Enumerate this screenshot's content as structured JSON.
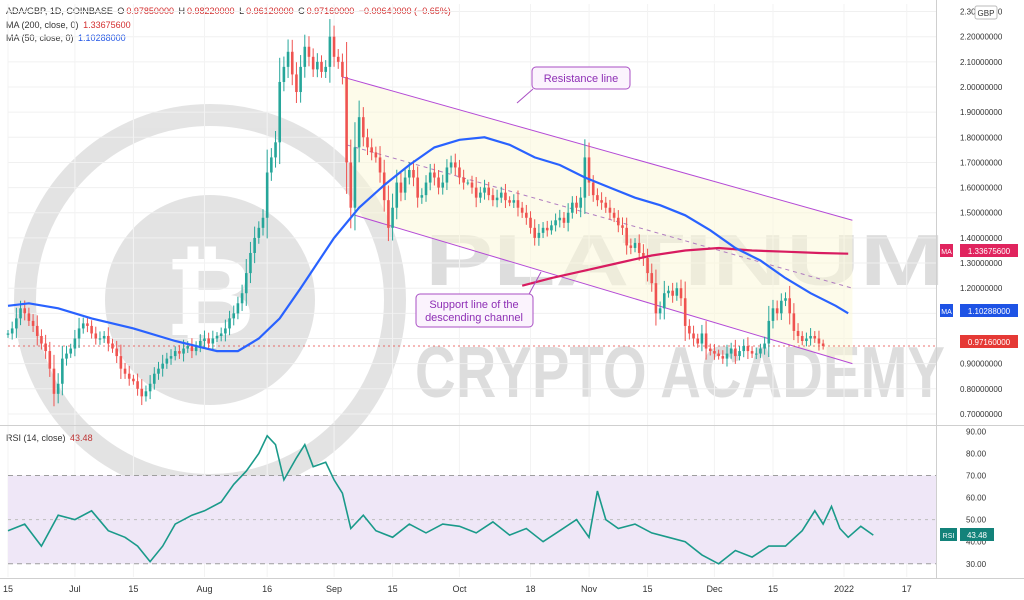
{
  "legend": {
    "symbol": "ADA/GBP, 1D, COINBASE",
    "o_label": "O",
    "o_value": "0.97850000",
    "h_label": "H",
    "h_value": "0.98220000",
    "l_label": "L",
    "l_value": "0.96120000",
    "c_label": "C",
    "c_value": "0.97160000",
    "change": "−0.00640000 (−0.65%)",
    "ma200_label": "MA (200, close, 0)",
    "ma200_value": "1.33675600",
    "ma50_label": "MA (50, close, 0)",
    "ma50_value": "1.10288000",
    "rsi_label": "RSI (14, close)",
    "rsi_value": "43.48"
  },
  "currency": "GBP",
  "annotations": {
    "resistance": "Resistance line",
    "support_line1": "Support line of the",
    "support_line2": "descending channel"
  },
  "watermark": {
    "line1": "PLATINUM",
    "line2": "CRYPTO ACADEMY"
  },
  "badges": {
    "ma200": {
      "tag": "MA",
      "value": "1.33675600",
      "color": "#e0245e"
    },
    "ma50": {
      "tag": "MA",
      "value": "1.10288000",
      "color": "#1e53e5"
    },
    "last": {
      "value": "0.97160000",
      "color": "#e53935"
    },
    "rsi": {
      "tag": "RSI",
      "value": "43.48",
      "color": "#13827a"
    }
  },
  "colors": {
    "up": "#26a69a",
    "down": "#ef5350",
    "ma50": "#2962ff",
    "ma200": "#d81b60",
    "channel": "#b44ad6",
    "rsi": "#1a9a8a",
    "rsi_band": "#efe7f7"
  },
  "chart_data": {
    "type": "candlestick",
    "price_axis": {
      "ticks": [
        "0.70000000",
        "0.80000000",
        "0.90000000",
        "1.00000000",
        "1.10000000",
        "1.20000000",
        "1.30000000",
        "1.40000000",
        "1.50000000",
        "1.60000000",
        "1.70000000",
        "1.80000000",
        "1.90000000",
        "2.00000000",
        "2.10000000",
        "2.20000000",
        "2.30000000"
      ],
      "range": [
        0.66,
        2.33
      ]
    },
    "rsi_axis": {
      "ticks": [
        "30.00",
        "40.00",
        "50.00",
        "60.00",
        "70.00",
        "80.00",
        "90.00"
      ],
      "range": [
        24,
        92
      ],
      "band": [
        30,
        70
      ],
      "midline": 50
    },
    "x_axis": {
      "ticks": [
        {
          "label": "15",
          "t": 0
        },
        {
          "label": "Jul",
          "t": 16
        },
        {
          "label": "15",
          "t": 30
        },
        {
          "label": "Aug",
          "t": 47
        },
        {
          "label": "16",
          "t": 62
        },
        {
          "label": "Sep",
          "t": 78
        },
        {
          "label": "15",
          "t": 92
        },
        {
          "label": "Oct",
          "t": 108
        },
        {
          "label": "18",
          "t": 125
        },
        {
          "label": "Nov",
          "t": 139
        },
        {
          "label": "15",
          "t": 153
        },
        {
          "label": "Dec",
          "t": 169
        },
        {
          "label": "15",
          "t": 183
        },
        {
          "label": "2022",
          "t": 200
        },
        {
          "label": "17",
          "t": 215
        }
      ],
      "range": [
        0,
        222
      ]
    },
    "close": [
      1.02,
      1.04,
      1.08,
      1.12,
      1.1,
      1.07,
      1.05,
      1.01,
      0.98,
      0.95,
      0.88,
      0.78,
      0.82,
      0.92,
      0.94,
      0.96,
      1.0,
      1.04,
      1.06,
      1.05,
      1.02,
      1.0,
      1.0,
      1.01,
      0.98,
      0.96,
      0.93,
      0.88,
      0.86,
      0.84,
      0.83,
      0.8,
      0.77,
      0.79,
      0.82,
      0.86,
      0.88,
      0.9,
      0.92,
      0.93,
      0.95,
      0.94,
      0.96,
      0.97,
      0.95,
      0.97,
      0.99,
      1.0,
      0.98,
      1.0,
      1.01,
      1.02,
      1.04,
      1.08,
      1.1,
      1.14,
      1.18,
      1.26,
      1.34,
      1.4,
      1.44,
      1.48,
      1.66,
      1.72,
      1.78,
      2.02,
      2.08,
      2.14,
      2.05,
      1.98,
      2.08,
      2.16,
      2.12,
      2.07,
      2.1,
      2.06,
      2.08,
      2.2,
      2.12,
      2.1,
      2.04,
      1.7,
      1.52,
      1.76,
      1.88,
      1.8,
      1.76,
      1.74,
      1.72,
      1.66,
      1.55,
      1.44,
      1.52,
      1.62,
      1.58,
      1.64,
      1.67,
      1.64,
      1.56,
      1.57,
      1.62,
      1.66,
      1.64,
      1.6,
      1.62,
      1.68,
      1.7,
      1.68,
      1.64,
      1.62,
      1.62,
      1.6,
      1.56,
      1.58,
      1.6,
      1.57,
      1.55,
      1.56,
      1.58,
      1.55,
      1.54,
      1.55,
      1.52,
      1.5,
      1.48,
      1.44,
      1.4,
      1.42,
      1.44,
      1.43,
      1.45,
      1.47,
      1.48,
      1.46,
      1.5,
      1.54,
      1.52,
      1.56,
      1.72,
      1.62,
      1.57,
      1.55,
      1.54,
      1.52,
      1.5,
      1.48,
      1.45,
      1.44,
      1.37,
      1.36,
      1.38,
      1.34,
      1.32,
      1.26,
      1.22,
      1.1,
      1.12,
      1.18,
      1.19,
      1.17,
      1.2,
      1.16,
      1.05,
      1.02,
      1.0,
      0.98,
      1.02,
      0.96,
      0.95,
      0.94,
      0.93,
      0.92,
      0.94,
      0.96,
      0.93,
      0.95,
      0.97,
      0.95,
      0.94,
      0.94,
      0.96,
      0.98,
      1.07,
      1.12,
      1.1,
      1.15,
      1.16,
      1.1,
      1.03,
      1.01,
      0.99,
      1.0,
      1.01,
      1.0,
      0.98,
      0.97
    ],
    "ma50": [
      {
        "t": 0,
        "v": 1.13
      },
      {
        "t": 5,
        "v": 1.14
      },
      {
        "t": 12,
        "v": 1.12
      },
      {
        "t": 20,
        "v": 1.08
      },
      {
        "t": 30,
        "v": 1.04
      },
      {
        "t": 40,
        "v": 0.99
      },
      {
        "t": 50,
        "v": 0.95
      },
      {
        "t": 55,
        "v": 0.95
      },
      {
        "t": 60,
        "v": 1.0
      },
      {
        "t": 65,
        "v": 1.08
      },
      {
        "t": 70,
        "v": 1.2
      },
      {
        "t": 78,
        "v": 1.4
      },
      {
        "t": 84,
        "v": 1.52
      },
      {
        "t": 90,
        "v": 1.61
      },
      {
        "t": 96,
        "v": 1.69
      },
      {
        "t": 102,
        "v": 1.76
      },
      {
        "t": 108,
        "v": 1.79
      },
      {
        "t": 114,
        "v": 1.8
      },
      {
        "t": 120,
        "v": 1.77
      },
      {
        "t": 126,
        "v": 1.72
      },
      {
        "t": 132,
        "v": 1.69
      },
      {
        "t": 138,
        "v": 1.64
      },
      {
        "t": 144,
        "v": 1.6
      },
      {
        "t": 150,
        "v": 1.56
      },
      {
        "t": 156,
        "v": 1.53
      },
      {
        "t": 162,
        "v": 1.49
      },
      {
        "t": 168,
        "v": 1.43
      },
      {
        "t": 174,
        "v": 1.36
      },
      {
        "t": 180,
        "v": 1.31
      },
      {
        "t": 186,
        "v": 1.24
      },
      {
        "t": 192,
        "v": 1.18
      },
      {
        "t": 198,
        "v": 1.13
      },
      {
        "t": 201,
        "v": 1.1
      }
    ],
    "ma200": [
      {
        "t": 123,
        "v": 1.21
      },
      {
        "t": 130,
        "v": 1.24
      },
      {
        "t": 138,
        "v": 1.27
      },
      {
        "t": 146,
        "v": 1.3
      },
      {
        "t": 154,
        "v": 1.33
      },
      {
        "t": 162,
        "v": 1.35
      },
      {
        "t": 170,
        "v": 1.36
      },
      {
        "t": 178,
        "v": 1.35
      },
      {
        "t": 186,
        "v": 1.345
      },
      {
        "t": 194,
        "v": 1.34
      },
      {
        "t": 201,
        "v": 1.337
      }
    ],
    "resistance_line": [
      {
        "t": 80,
        "v": 2.04
      },
      {
        "t": 202,
        "v": 1.47
      }
    ],
    "support_line": [
      {
        "t": 83,
        "v": 1.49
      },
      {
        "t": 202,
        "v": 0.9
      }
    ],
    "mid_channel_line": [
      {
        "t": 81,
        "v": 1.77
      },
      {
        "t": 202,
        "v": 1.2
      }
    ],
    "rsi": [
      {
        "t": 0,
        "v": 45
      },
      {
        "t": 4,
        "v": 48
      },
      {
        "t": 8,
        "v": 38
      },
      {
        "t": 12,
        "v": 52
      },
      {
        "t": 16,
        "v": 50
      },
      {
        "t": 20,
        "v": 54
      },
      {
        "t": 24,
        "v": 45
      },
      {
        "t": 28,
        "v": 42
      },
      {
        "t": 31,
        "v": 38
      },
      {
        "t": 34,
        "v": 31
      },
      {
        "t": 37,
        "v": 38
      },
      {
        "t": 40,
        "v": 48
      },
      {
        "t": 44,
        "v": 52
      },
      {
        "t": 47,
        "v": 54
      },
      {
        "t": 51,
        "v": 58
      },
      {
        "t": 54,
        "v": 66
      },
      {
        "t": 57,
        "v": 72
      },
      {
        "t": 60,
        "v": 80
      },
      {
        "t": 62,
        "v": 88
      },
      {
        "t": 64,
        "v": 84
      },
      {
        "t": 66,
        "v": 68
      },
      {
        "t": 69,
        "v": 78
      },
      {
        "t": 71,
        "v": 84
      },
      {
        "t": 73,
        "v": 74
      },
      {
        "t": 76,
        "v": 76
      },
      {
        "t": 78,
        "v": 68
      },
      {
        "t": 80,
        "v": 62
      },
      {
        "t": 82,
        "v": 46
      },
      {
        "t": 85,
        "v": 52
      },
      {
        "t": 88,
        "v": 45
      },
      {
        "t": 92,
        "v": 42
      },
      {
        "t": 96,
        "v": 48
      },
      {
        "t": 100,
        "v": 44
      },
      {
        "t": 104,
        "v": 48
      },
      {
        "t": 108,
        "v": 47
      },
      {
        "t": 112,
        "v": 44
      },
      {
        "t": 116,
        "v": 49
      },
      {
        "t": 120,
        "v": 43
      },
      {
        "t": 124,
        "v": 46
      },
      {
        "t": 128,
        "v": 40
      },
      {
        "t": 132,
        "v": 45
      },
      {
        "t": 136,
        "v": 50
      },
      {
        "t": 139,
        "v": 42
      },
      {
        "t": 141,
        "v": 63
      },
      {
        "t": 143,
        "v": 50
      },
      {
        "t": 146,
        "v": 46
      },
      {
        "t": 150,
        "v": 48
      },
      {
        "t": 154,
        "v": 44
      },
      {
        "t": 158,
        "v": 42
      },
      {
        "t": 162,
        "v": 40
      },
      {
        "t": 166,
        "v": 34
      },
      {
        "t": 170,
        "v": 30
      },
      {
        "t": 174,
        "v": 36
      },
      {
        "t": 178,
        "v": 33
      },
      {
        "t": 182,
        "v": 38
      },
      {
        "t": 186,
        "v": 38
      },
      {
        "t": 190,
        "v": 45
      },
      {
        "t": 193,
        "v": 54
      },
      {
        "t": 195,
        "v": 48
      },
      {
        "t": 197,
        "v": 56
      },
      {
        "t": 199,
        "v": 46
      },
      {
        "t": 201,
        "v": 42
      },
      {
        "t": 204,
        "v": 47
      },
      {
        "t": 207,
        "v": 43
      }
    ]
  }
}
